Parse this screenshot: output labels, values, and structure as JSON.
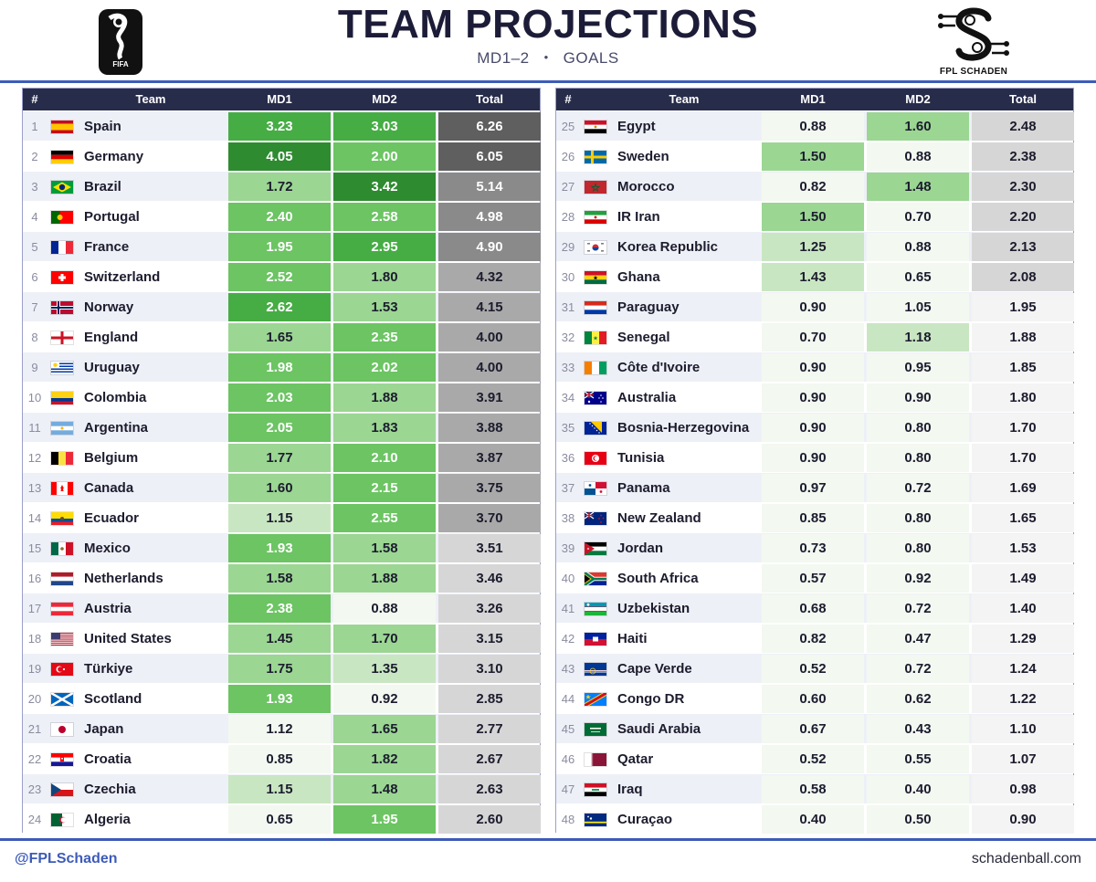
{
  "header": {
    "title": "TEAM PROJECTIONS",
    "subtitle_left": "MD1–2",
    "subtitle_sep": "•",
    "subtitle_right": "GOALS",
    "left_logo_text": "FIFA",
    "right_logo_text": "FPL SCHADEN"
  },
  "columns": {
    "rank": "#",
    "team": "Team",
    "md1": "MD1",
    "md2": "MD2",
    "total": "Total"
  },
  "footer": {
    "handle": "@FPLSchaden",
    "site": "schadenball.com"
  },
  "chart_data": {
    "type": "table",
    "title": "TEAM PROJECTIONS",
    "columns": [
      "#",
      "Team",
      "MD1",
      "MD2",
      "Total"
    ],
    "rows": [
      {
        "rank": 1,
        "team": "Spain",
        "flag": "spain-flag",
        "md1": "3.23",
        "md2": "3.03",
        "total": "6.26"
      },
      {
        "rank": 2,
        "team": "Germany",
        "flag": "germany-flag",
        "md1": "4.05",
        "md2": "2.00",
        "total": "6.05"
      },
      {
        "rank": 3,
        "team": "Brazil",
        "flag": "brazil-flag",
        "md1": "1.72",
        "md2": "3.42",
        "total": "5.14"
      },
      {
        "rank": 4,
        "team": "Portugal",
        "flag": "portugal-flag",
        "md1": "2.40",
        "md2": "2.58",
        "total": "4.98"
      },
      {
        "rank": 5,
        "team": "France",
        "flag": "france-flag",
        "md1": "1.95",
        "md2": "2.95",
        "total": "4.90"
      },
      {
        "rank": 6,
        "team": "Switzerland",
        "flag": "switzerland-flag",
        "md1": "2.52",
        "md2": "1.80",
        "total": "4.32"
      },
      {
        "rank": 7,
        "team": "Norway",
        "flag": "norway-flag",
        "md1": "2.62",
        "md2": "1.53",
        "total": "4.15"
      },
      {
        "rank": 8,
        "team": "England",
        "flag": "england-flag",
        "md1": "1.65",
        "md2": "2.35",
        "total": "4.00"
      },
      {
        "rank": 9,
        "team": "Uruguay",
        "flag": "uruguay-flag",
        "md1": "1.98",
        "md2": "2.02",
        "total": "4.00"
      },
      {
        "rank": 10,
        "team": "Colombia",
        "flag": "colombia-flag",
        "md1": "2.03",
        "md2": "1.88",
        "total": "3.91"
      },
      {
        "rank": 11,
        "team": "Argentina",
        "flag": "argentina-flag",
        "md1": "2.05",
        "md2": "1.83",
        "total": "3.88"
      },
      {
        "rank": 12,
        "team": "Belgium",
        "flag": "belgium-flag",
        "md1": "1.77",
        "md2": "2.10",
        "total": "3.87"
      },
      {
        "rank": 13,
        "team": "Canada",
        "flag": "canada-flag",
        "md1": "1.60",
        "md2": "2.15",
        "total": "3.75"
      },
      {
        "rank": 14,
        "team": "Ecuador",
        "flag": "ecuador-flag",
        "md1": "1.15",
        "md2": "2.55",
        "total": "3.70"
      },
      {
        "rank": 15,
        "team": "Mexico",
        "flag": "mexico-flag",
        "md1": "1.93",
        "md2": "1.58",
        "total": "3.51"
      },
      {
        "rank": 16,
        "team": "Netherlands",
        "flag": "netherlands-flag",
        "md1": "1.58",
        "md2": "1.88",
        "total": "3.46"
      },
      {
        "rank": 17,
        "team": "Austria",
        "flag": "austria-flag",
        "md1": "2.38",
        "md2": "0.88",
        "total": "3.26"
      },
      {
        "rank": 18,
        "team": "United States",
        "flag": "usa-flag",
        "md1": "1.45",
        "md2": "1.70",
        "total": "3.15"
      },
      {
        "rank": 19,
        "team": "Türkiye",
        "flag": "turkiye-flag",
        "md1": "1.75",
        "md2": "1.35",
        "total": "3.10"
      },
      {
        "rank": 20,
        "team": "Scotland",
        "flag": "scotland-flag",
        "md1": "1.93",
        "md2": "0.92",
        "total": "2.85"
      },
      {
        "rank": 21,
        "team": "Japan",
        "flag": "japan-flag",
        "md1": "1.12",
        "md2": "1.65",
        "total": "2.77"
      },
      {
        "rank": 22,
        "team": "Croatia",
        "flag": "croatia-flag",
        "md1": "0.85",
        "md2": "1.82",
        "total": "2.67"
      },
      {
        "rank": 23,
        "team": "Czechia",
        "flag": "czechia-flag",
        "md1": "1.15",
        "md2": "1.48",
        "total": "2.63"
      },
      {
        "rank": 24,
        "team": "Algeria",
        "flag": "algeria-flag",
        "md1": "0.65",
        "md2": "1.95",
        "total": "2.60"
      },
      {
        "rank": 25,
        "team": "Egypt",
        "flag": "egypt-flag",
        "md1": "0.88",
        "md2": "1.60",
        "total": "2.48"
      },
      {
        "rank": 26,
        "team": "Sweden",
        "flag": "sweden-flag",
        "md1": "1.50",
        "md2": "0.88",
        "total": "2.38"
      },
      {
        "rank": 27,
        "team": "Morocco",
        "flag": "morocco-flag",
        "md1": "0.82",
        "md2": "1.48",
        "total": "2.30"
      },
      {
        "rank": 28,
        "team": "IR Iran",
        "flag": "iran-flag",
        "md1": "1.50",
        "md2": "0.70",
        "total": "2.20"
      },
      {
        "rank": 29,
        "team": "Korea Republic",
        "flag": "korea-flag",
        "md1": "1.25",
        "md2": "0.88",
        "total": "2.13"
      },
      {
        "rank": 30,
        "team": "Ghana",
        "flag": "ghana-flag",
        "md1": "1.43",
        "md2": "0.65",
        "total": "2.08"
      },
      {
        "rank": 31,
        "team": "Paraguay",
        "flag": "paraguay-flag",
        "md1": "0.90",
        "md2": "1.05",
        "total": "1.95"
      },
      {
        "rank": 32,
        "team": "Senegal",
        "flag": "senegal-flag",
        "md1": "0.70",
        "md2": "1.18",
        "total": "1.88"
      },
      {
        "rank": 33,
        "team": "Côte d'Ivoire",
        "flag": "cote-divoire-flag",
        "md1": "0.90",
        "md2": "0.95",
        "total": "1.85"
      },
      {
        "rank": 34,
        "team": "Australia",
        "flag": "australia-flag",
        "md1": "0.90",
        "md2": "0.90",
        "total": "1.80"
      },
      {
        "rank": 35,
        "team": "Bosnia-Herzegovina",
        "flag": "bosnia-flag",
        "md1": "0.90",
        "md2": "0.80",
        "total": "1.70"
      },
      {
        "rank": 36,
        "team": "Tunisia",
        "flag": "tunisia-flag",
        "md1": "0.90",
        "md2": "0.80",
        "total": "1.70"
      },
      {
        "rank": 37,
        "team": "Panama",
        "flag": "panama-flag",
        "md1": "0.97",
        "md2": "0.72",
        "total": "1.69"
      },
      {
        "rank": 38,
        "team": "New Zealand",
        "flag": "new-zealand-flag",
        "md1": "0.85",
        "md2": "0.80",
        "total": "1.65"
      },
      {
        "rank": 39,
        "team": "Jordan",
        "flag": "jordan-flag",
        "md1": "0.73",
        "md2": "0.80",
        "total": "1.53"
      },
      {
        "rank": 40,
        "team": "South Africa",
        "flag": "south-africa-flag",
        "md1": "0.57",
        "md2": "0.92",
        "total": "1.49"
      },
      {
        "rank": 41,
        "team": "Uzbekistan",
        "flag": "uzbekistan-flag",
        "md1": "0.68",
        "md2": "0.72",
        "total": "1.40"
      },
      {
        "rank": 42,
        "team": "Haiti",
        "flag": "haiti-flag",
        "md1": "0.82",
        "md2": "0.47",
        "total": "1.29"
      },
      {
        "rank": 43,
        "team": "Cape Verde",
        "flag": "cape-verde-flag",
        "md1": "0.52",
        "md2": "0.72",
        "total": "1.24"
      },
      {
        "rank": 44,
        "team": "Congo DR",
        "flag": "congo-dr-flag",
        "md1": "0.60",
        "md2": "0.62",
        "total": "1.22"
      },
      {
        "rank": 45,
        "team": "Saudi Arabia",
        "flag": "saudi-arabia-flag",
        "md1": "0.67",
        "md2": "0.43",
        "total": "1.10"
      },
      {
        "rank": 46,
        "team": "Qatar",
        "flag": "qatar-flag",
        "md1": "0.52",
        "md2": "0.55",
        "total": "1.07"
      },
      {
        "rank": 47,
        "team": "Iraq",
        "flag": "iraq-flag",
        "md1": "0.58",
        "md2": "0.40",
        "total": "0.98"
      },
      {
        "rank": 48,
        "team": "Curaçao",
        "flag": "curacao-flag",
        "md1": "0.40",
        "md2": "0.50",
        "total": "0.90"
      }
    ]
  },
  "colors": {
    "title": "#1c1c38",
    "accent_rule": "#3d5bb8",
    "header_bg": "#272c4a",
    "row_alt": "#eef0f7",
    "green_scale": [
      "#f3f8f1",
      "#c9e6c2",
      "#9bd693",
      "#6cc463",
      "#46ad44",
      "#2e8b30"
    ],
    "gray_scale": [
      "#f4f4f4",
      "#d6d6d6",
      "#a9a9a9",
      "#8a8a8a",
      "#5f5f5f"
    ]
  }
}
